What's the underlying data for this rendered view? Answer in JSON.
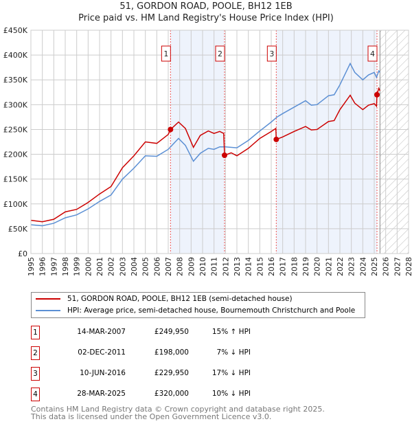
{
  "chart_data": {
    "type": "line",
    "title": "51, GORDON ROAD, POOLE, BH12 1EB",
    "subtitle": "Price paid vs. HM Land Registry's House Price Index (HPI)",
    "xlim": [
      1995,
      2028
    ],
    "ylim": [
      0,
      450000
    ],
    "x_ticks": [
      "1995",
      "1996",
      "1997",
      "1998",
      "1999",
      "2000",
      "2001",
      "2002",
      "2003",
      "2004",
      "2005",
      "2006",
      "2007",
      "2008",
      "2009",
      "2010",
      "2011",
      "2012",
      "2013",
      "2014",
      "2015",
      "2016",
      "2017",
      "2018",
      "2019",
      "2020",
      "2021",
      "2022",
      "2023",
      "2024",
      "2025",
      "2026",
      "2027",
      "2028"
    ],
    "y_ticks": [
      "£0",
      "£50K",
      "£100K",
      "£150K",
      "£200K",
      "£250K",
      "£300K",
      "£350K",
      "£400K",
      "£450K"
    ],
    "grid": true,
    "series": [
      {
        "name": "51, GORDON ROAD, POOLE, BH12 1EB (semi-detached house)",
        "color": "#cc0000",
        "x": [
          1995,
          1996,
          1997,
          1998,
          1999,
          2000,
          2001,
          2002,
          2003,
          2004,
          2005,
          2006,
          2007,
          2007.2,
          2007.9,
          2008.5,
          2009.2,
          2009.8,
          2010.5,
          2011,
          2011.5,
          2011.85,
          2011.92,
          2012.5,
          2013,
          2014,
          2015,
          2016,
          2016.4,
          2016.44,
          2017,
          2018,
          2019,
          2019.5,
          2020,
          2021,
          2021.5,
          2022,
          2022.9,
          2023.3,
          2024,
          2024.5,
          2025,
          2025.2,
          2025.24,
          2025.4,
          2025.5
        ],
        "y": [
          67,
          64,
          69,
          84,
          89,
          103,
          120,
          135,
          173,
          197,
          225,
          222,
          240,
          250,
          265,
          252,
          214,
          238,
          247,
          242,
          246,
          242,
          198,
          203,
          197,
          212,
          232,
          246,
          252,
          230,
          235,
          246,
          256,
          249,
          250,
          266,
          268,
          290,
          319,
          303,
          290,
          299,
          302,
          297,
          320,
          333,
          328
        ]
      },
      {
        "name": "HPI: Average price, semi-detached house, Bournemouth Christchurch and Poole",
        "color": "#5b8fd4",
        "x": [
          1995,
          1996,
          1997,
          1998,
          1999,
          2000,
          2001,
          2002,
          2003,
          2004,
          2005,
          2006,
          2007,
          2007.9,
          2008.5,
          2009.2,
          2009.8,
          2010.5,
          2011,
          2011.5,
          2012,
          2013,
          2014,
          2015,
          2016,
          2016.5,
          2017,
          2018,
          2019,
          2019.5,
          2020,
          2021,
          2021.5,
          2022,
          2022.9,
          2023.3,
          2024,
          2024.5,
          2025,
          2025.2,
          2025.4,
          2025.5
        ],
        "y": [
          58,
          56,
          61,
          72,
          78,
          90,
          105,
          118,
          150,
          172,
          197,
          196,
          210,
          232,
          218,
          186,
          202,
          212,
          210,
          215,
          215,
          213,
          228,
          247,
          265,
          275,
          282,
          295,
          308,
          299,
          300,
          318,
          320,
          340,
          383,
          365,
          350,
          360,
          365,
          355,
          368,
          365
        ]
      }
    ],
    "y_unit": "thousands GBP",
    "sales": [
      {
        "n": "1",
        "x": 2007.2,
        "y": 249.95
      },
      {
        "n": "2",
        "x": 2011.92,
        "y": 198
      },
      {
        "n": "3",
        "x": 2016.44,
        "y": 229.95
      },
      {
        "n": "4",
        "x": 2025.24,
        "y": 320
      }
    ],
    "forecast_start": 2025.5
  },
  "legend": {
    "red": "51, GORDON ROAD, POOLE, BH12 1EB (semi-detached house)",
    "blue": "HPI: Average price, semi-detached house, Bournemouth Christchurch and Poole"
  },
  "table": [
    {
      "n": "1",
      "date": "14-MAR-2007",
      "price": "£249,950",
      "hpi": "15% ↑ HPI"
    },
    {
      "n": "2",
      "date": "02-DEC-2011",
      "price": "£198,000",
      "hpi": "7% ↓ HPI"
    },
    {
      "n": "3",
      "date": "10-JUN-2016",
      "price": "£229,950",
      "hpi": "17% ↓ HPI"
    },
    {
      "n": "4",
      "date": "28-MAR-2025",
      "price": "£320,000",
      "hpi": "10% ↓ HPI"
    }
  ],
  "footer": {
    "line1": "Contains HM Land Registry data © Crown copyright and database right 2025.",
    "line2": "This data is licensed under the Open Government Licence v3.0."
  }
}
